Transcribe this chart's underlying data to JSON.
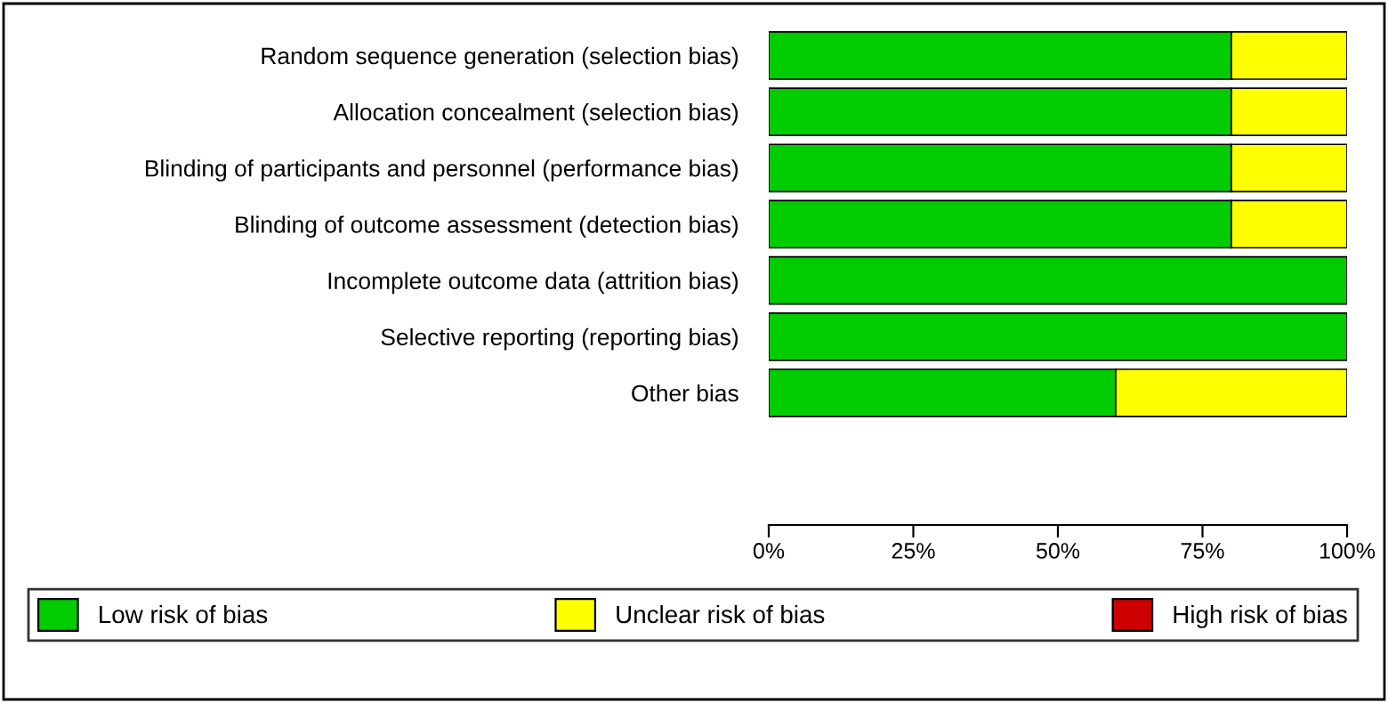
{
  "chart_data": {
    "type": "bar",
    "orientation": "horizontal",
    "stacked": true,
    "categories": [
      "Random sequence generation (selection bias)",
      "Allocation concealment (selection bias)",
      "Blinding of participants and personnel (performance bias)",
      "Blinding of outcome assessment (detection bias)",
      "Incomplete outcome data (attrition bias)",
      "Selective reporting (reporting bias)",
      "Other bias"
    ],
    "series": [
      {
        "name": "Low risk of bias",
        "color": "#00cc00",
        "values": [
          80,
          80,
          80,
          80,
          100,
          100,
          60
        ]
      },
      {
        "name": "Unclear risk of bias",
        "color": "#ffff00",
        "values": [
          20,
          20,
          20,
          20,
          0,
          0,
          40
        ]
      },
      {
        "name": "High risk of bias",
        "color": "#cc0000",
        "values": [
          0,
          0,
          0,
          0,
          0,
          0,
          0
        ]
      }
    ],
    "xlim": [
      0,
      100
    ],
    "xticks": [
      {
        "value": 0,
        "label": "0%"
      },
      {
        "value": 25,
        "label": "25%"
      },
      {
        "value": 50,
        "label": "50%"
      },
      {
        "value": 75,
        "label": "75%"
      },
      {
        "value": 100,
        "label": "100%"
      }
    ],
    "legend": "bottom"
  }
}
